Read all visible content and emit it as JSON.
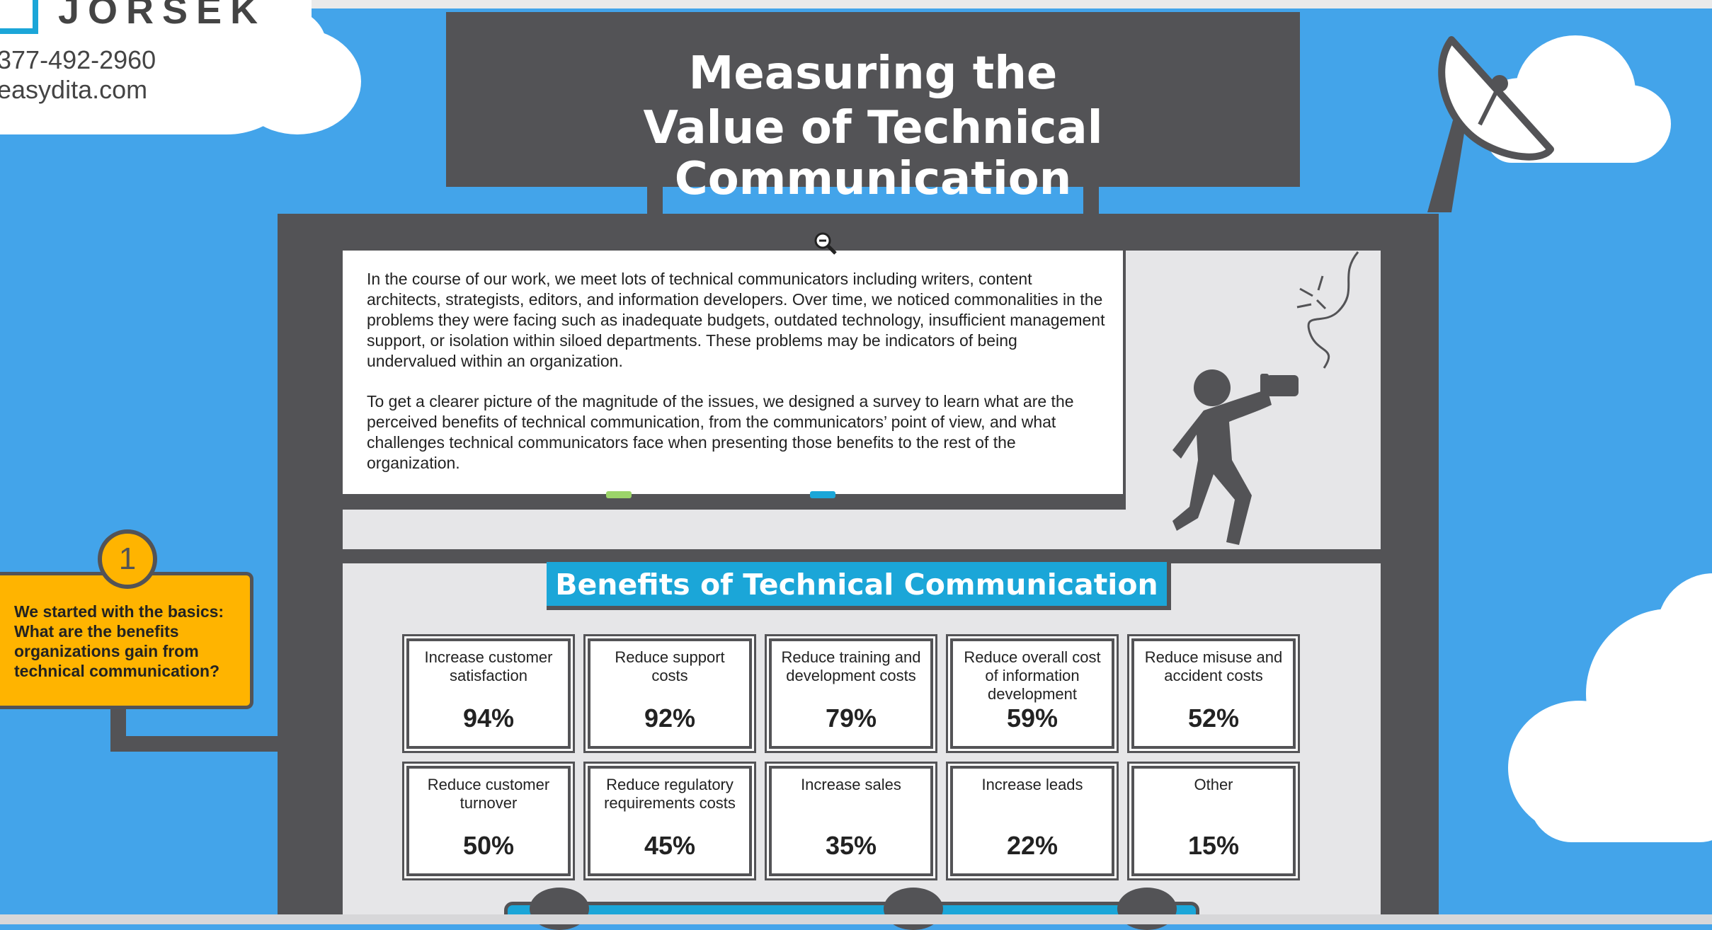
{
  "header": {
    "logo_text": "JORSEK",
    "phone": "377-492-2960",
    "website": "easydita.com",
    "title_line1": "Measuring the",
    "title_line2": "Value of Technical Communication"
  },
  "intro": {
    "paragraph1": "In the course of our work, we meet lots of technical communicators including writers, content architects, strategists, editors, and information developers. Over time, we noticed commonalities in the problems they were facing such as inadequate budgets, outdated technology, insufficient management support, or isolation within siloed departments. These problems may be indicators of being undervalued within an organization.",
    "paragraph2": "To get a clearer picture of the magnitude of the issues, we designed a survey to learn what are the perceived benefits of technical communication, from the communicators’ point of view, and what challenges technical communicators face when presenting those benefits to the rest of the organization."
  },
  "step": {
    "number": "1",
    "text": "We started with the basics: What are the benefits organizations gain from technical communication?"
  },
  "benefits": {
    "title": "Benefits of Technical Communication",
    "cards": [
      {
        "label": "Increase customer satisfaction",
        "value": "94%"
      },
      {
        "label": "Reduce support costs",
        "value": "92%"
      },
      {
        "label": "Reduce training and development costs",
        "value": "79%"
      },
      {
        "label": "Reduce overall cost of information development",
        "value": "59%"
      },
      {
        "label": "Reduce misuse and accident costs",
        "value": "52%"
      },
      {
        "label": "Reduce customer turnover",
        "value": "50%"
      },
      {
        "label": "Reduce regulatory requirements costs",
        "value": "45%"
      },
      {
        "label": "Increase sales",
        "value": "35%"
      },
      {
        "label": "Increase leads",
        "value": "22%"
      },
      {
        "label": "Other",
        "value": "15%"
      }
    ]
  },
  "colors": {
    "sky": "#43a4ea",
    "building": "#535356",
    "accent_blue": "#1ba6d8",
    "callout_yellow": "#ffb400"
  },
  "icons": [
    "zoom-out-icon",
    "satellite-dish-icon",
    "person-tin-can-phone-icon",
    "logo-square-icon"
  ]
}
